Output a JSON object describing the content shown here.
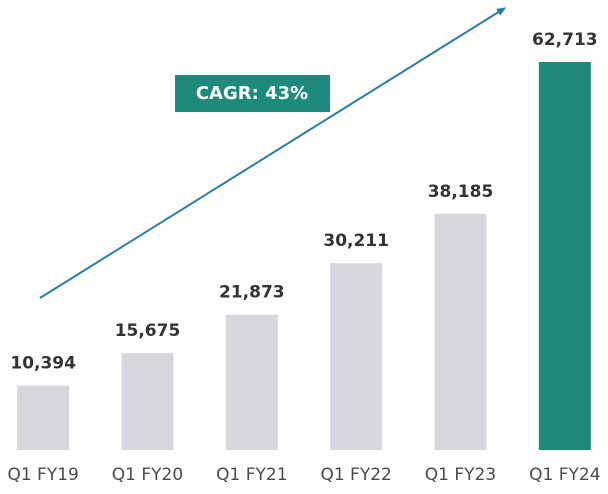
{
  "chart_data": {
    "type": "bar",
    "categories": [
      "Q1 FY19",
      "Q1 FY20",
      "Q1 FY21",
      "Q1 FY22",
      "Q1 FY23",
      "Q1 FY24"
    ],
    "values": [
      10394,
      15675,
      21873,
      30211,
      38185,
      62713
    ],
    "value_labels": [
      "10,394",
      "15,675",
      "21,873",
      "30,211",
      "38,185",
      "62,713"
    ],
    "colors": [
      "#d6d6dc",
      "#d6d6dc",
      "#d6d6dc",
      "#d6d6dc",
      "#d6d6dc",
      "#1e8a7b"
    ],
    "annotation": "CAGR: 43%"
  }
}
